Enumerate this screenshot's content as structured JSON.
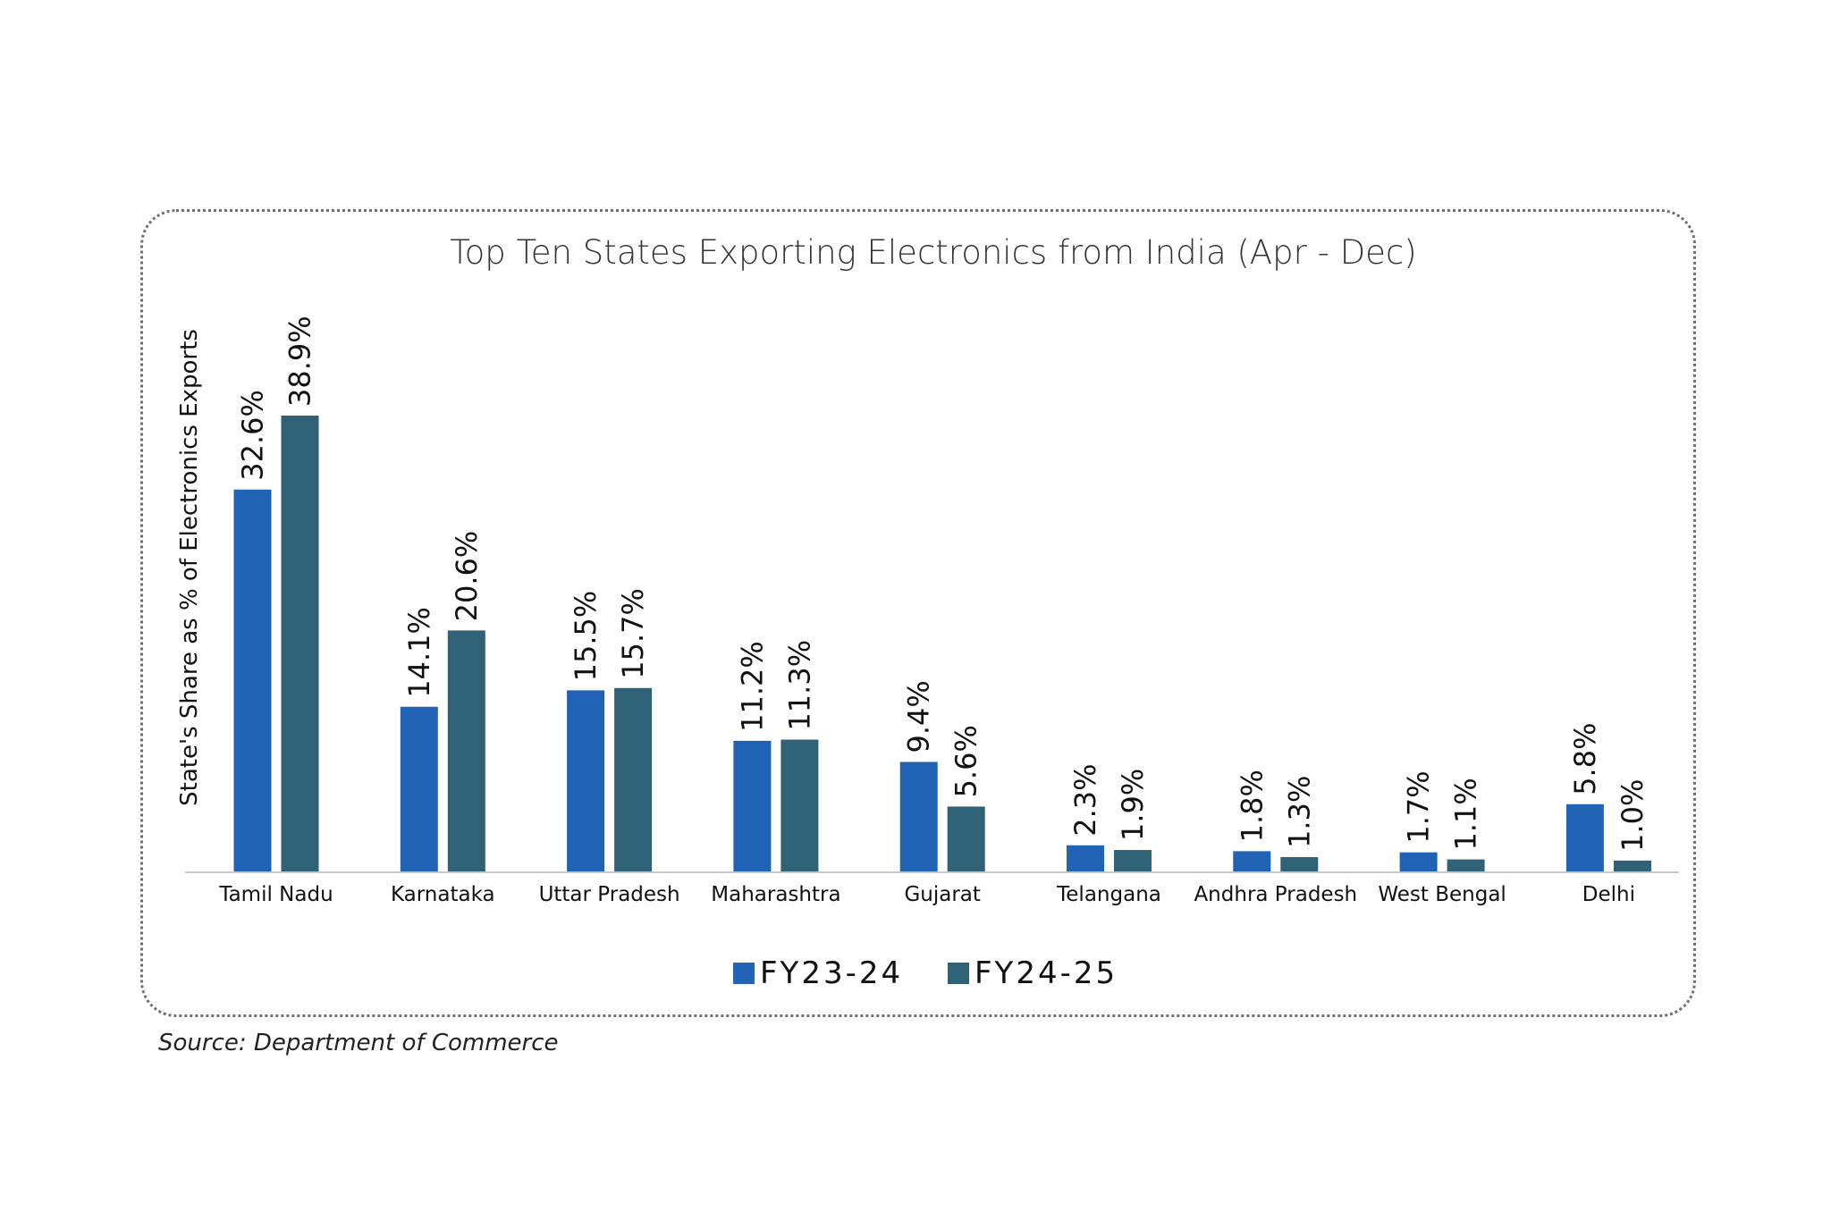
{
  "chart_data": {
    "type": "bar",
    "title": "Top Ten States Exporting Electronics from India (Apr - Dec)",
    "ylabel": "State's Share as % of Electronics Exports",
    "xlabel": "",
    "categories": [
      "Tamil Nadu",
      "Karnataka",
      "Uttar Pradesh",
      "Maharashtra",
      "Gujarat",
      "Telangana",
      "Andhra Pradesh",
      "West Bengal",
      "Delhi"
    ],
    "series": [
      {
        "name": "FY23-24",
        "color": "#2062b4",
        "values": [
          32.6,
          14.1,
          15.5,
          11.2,
          9.4,
          2.3,
          1.8,
          1.7,
          5.8
        ],
        "labels": [
          "32.6%",
          "14.1%",
          "15.5%",
          "11.2%",
          "9.4%",
          "2.3%",
          "1.8%",
          "1.7%",
          "5.8%"
        ]
      },
      {
        "name": "FY24-25",
        "color": "#2f6276",
        "values": [
          38.9,
          20.6,
          15.7,
          11.3,
          5.6,
          1.9,
          1.3,
          1.1,
          1.0
        ],
        "labels": [
          "38.9%",
          "20.6%",
          "15.7%",
          "11.3%",
          "5.6%",
          "1.9%",
          "1.3%",
          "1.1%",
          "1.0%"
        ]
      }
    ],
    "ylim": [
      0,
      40
    ],
    "grid": false,
    "legend_position": "bottom"
  },
  "source": "Source: Department of Commerce"
}
